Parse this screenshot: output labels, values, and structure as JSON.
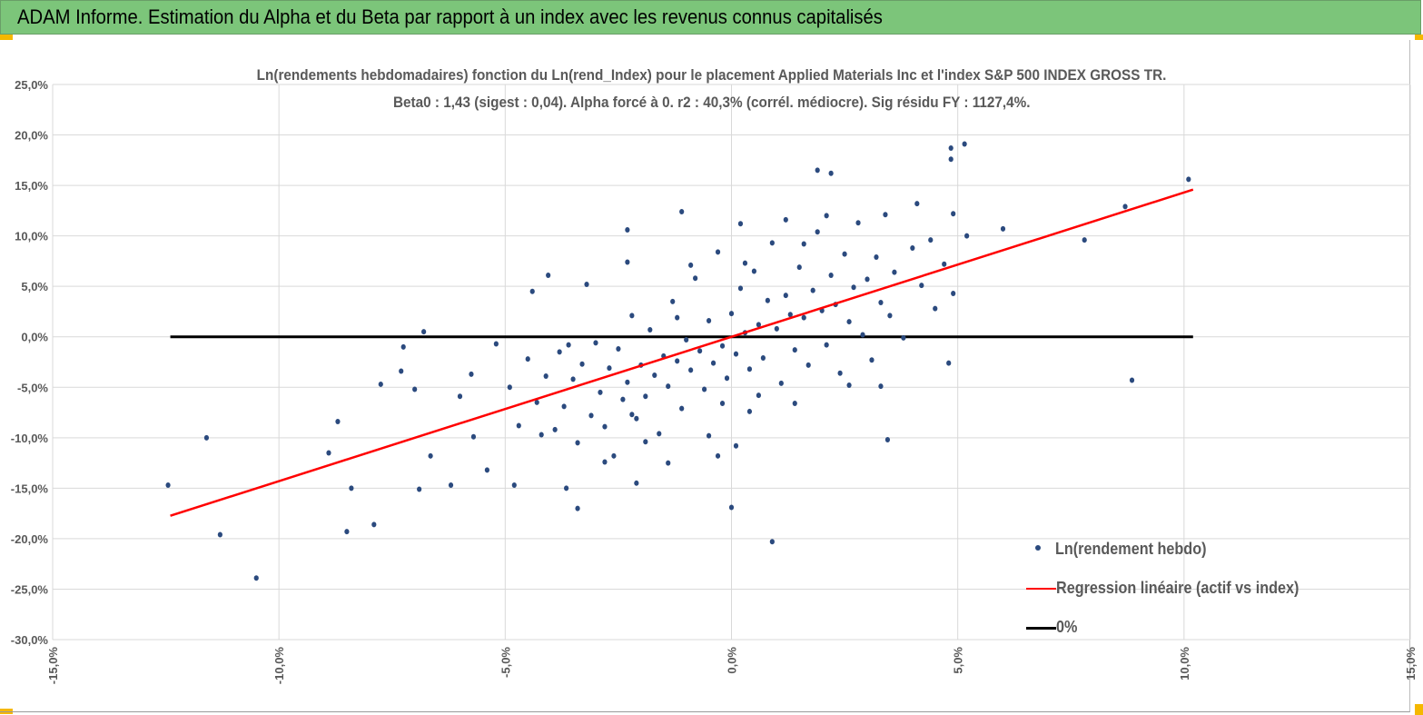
{
  "header": {
    "title": "ADAM Informe. Estimation du Alpha et du Beta par rapport à un index avec les revenus connus capitalisés"
  },
  "colors": {
    "title_bar": "#7cc57a",
    "points": "#2b4a7e",
    "regression": "#ff0000",
    "zero_line": "#000000",
    "grid": "#d9d9d9"
  },
  "chart_data": {
    "type": "scatter",
    "title": "Ln(rendements hebdomadaires) fonction du Ln(rend_Index) pour le placement Applied Materials Inc et l'index S&P 500 INDEX GROSS TR.",
    "subtitle": "Beta0 : 1,43 (sigest : 0,04). Alpha forcé à 0. r2 : 40,3% (corrél. médiocre). Sig résidu FY : 1127,4%.",
    "xlabel": "",
    "ylabel": "",
    "xlim": [
      -15,
      15
    ],
    "ylim": [
      -30,
      25
    ],
    "xticks": [
      -15,
      -10,
      -5,
      0,
      5,
      10,
      15
    ],
    "yticks": [
      25,
      20,
      15,
      10,
      5,
      0,
      -5,
      -10,
      -15,
      -20,
      -25,
      -30
    ],
    "xtick_labels": [
      "-15,0%",
      "-10,0%",
      "-5,0%",
      "0,0%",
      "5,0%",
      "10,0%",
      "15,0%"
    ],
    "ytick_labels": [
      "25,0%",
      "20,0%",
      "15,0%",
      "10,0%",
      "5,0%",
      "0,0%",
      "-5,0%",
      "-10,0%",
      "-15,0%",
      "-20,0%",
      "-25,0%",
      "-30,0%"
    ],
    "grid": true,
    "legend_position": "bottom-right",
    "series": [
      {
        "name": "Ln(rendement hebdo)",
        "kind": "points",
        "points": [
          [
            -12.45,
            -14.7
          ],
          [
            -11.6,
            -10
          ],
          [
            -11.3,
            -19.6
          ],
          [
            -10.5,
            -23.9
          ],
          [
            -8.9,
            -11.5
          ],
          [
            -8.7,
            -8.4
          ],
          [
            -8.5,
            -19.3
          ],
          [
            -8.4,
            -15
          ],
          [
            -7.9,
            -18.6
          ],
          [
            -7.75,
            -4.7
          ],
          [
            -7.3,
            -3.4
          ],
          [
            -7.25,
            -1
          ],
          [
            -7,
            -5.2
          ],
          [
            -6.9,
            -15.1
          ],
          [
            -6.8,
            0.5
          ],
          [
            -6.65,
            -11.8
          ],
          [
            -6.2,
            -14.7
          ],
          [
            -6,
            -5.9
          ],
          [
            -5.75,
            -3.7
          ],
          [
            -5.7,
            -9.9
          ],
          [
            -5.4,
            -13.2
          ],
          [
            -5.2,
            -0.7
          ],
          [
            -4.05,
            6.1
          ],
          [
            -4.4,
            4.5
          ],
          [
            -4.8,
            -14.7
          ],
          [
            -3.65,
            -15
          ],
          [
            -3.4,
            -17
          ],
          [
            -3.2,
            5.2
          ],
          [
            -2.3,
            10.6
          ],
          [
            -2.1,
            -14.5
          ],
          [
            -2.3,
            7.4
          ],
          [
            -1.1,
            12.4
          ],
          [
            0,
            -16.9
          ],
          [
            0.9,
            -20.3
          ],
          [
            0.1,
            -10.8
          ],
          [
            -0.3,
            -11.8
          ],
          [
            1.9,
            16.5
          ],
          [
            2.2,
            16.2
          ],
          [
            3.45,
            -10.2
          ],
          [
            4.85,
            18.7
          ],
          [
            4.85,
            17.6
          ],
          [
            5.15,
            19.1
          ],
          [
            4.8,
            -2.6
          ],
          [
            6,
            10.7
          ],
          [
            7.8,
            9.6
          ],
          [
            8.7,
            12.9
          ],
          [
            8.85,
            -4.3
          ],
          [
            10.1,
            15.6
          ],
          [
            5.2,
            10
          ],
          [
            4.9,
            4.3
          ],
          [
            -4.9,
            -5
          ],
          [
            -4.7,
            -8.8
          ],
          [
            -4.5,
            -2.2
          ],
          [
            -4.3,
            -6.5
          ],
          [
            -4.1,
            -3.9
          ],
          [
            -3.9,
            -9.2
          ],
          [
            -3.8,
            -1.5
          ],
          [
            -3.7,
            -6.9
          ],
          [
            -3.5,
            -4.2
          ],
          [
            -3.4,
            -10.5
          ],
          [
            -3.3,
            -2.7
          ],
          [
            -3.1,
            -7.8
          ],
          [
            -3,
            -0.6
          ],
          [
            -2.9,
            -5.5
          ],
          [
            -2.8,
            -8.9
          ],
          [
            -2.7,
            -3.1
          ],
          [
            -2.6,
            -11.8
          ],
          [
            -2.5,
            -1.2
          ],
          [
            -2.4,
            -6.2
          ],
          [
            -2.3,
            -4.5
          ],
          [
            -2.2,
            2.1
          ],
          [
            -2.1,
            -8.1
          ],
          [
            -2,
            -2.8
          ],
          [
            -1.9,
            -5.9
          ],
          [
            -1.8,
            0.7
          ],
          [
            -1.7,
            -3.8
          ],
          [
            -1.6,
            -9.6
          ],
          [
            -1.5,
            -1.9
          ],
          [
            -1.4,
            -4.9
          ],
          [
            -1.3,
            3.5
          ],
          [
            -1.2,
            -2.4
          ],
          [
            -1.1,
            -7.1
          ],
          [
            -1,
            -0.3
          ],
          [
            -0.9,
            -3.3
          ],
          [
            -0.8,
            5.8
          ],
          [
            -0.7,
            -1.4
          ],
          [
            -0.6,
            -5.2
          ],
          [
            -0.5,
            1.6
          ],
          [
            -0.4,
            -2.6
          ],
          [
            -0.3,
            8.4
          ],
          [
            -0.2,
            -0.9
          ],
          [
            -0.1,
            -4.1
          ],
          [
            0,
            2.3
          ],
          [
            0.1,
            -1.7
          ],
          [
            0.2,
            4.8
          ],
          [
            0.3,
            0.4
          ],
          [
            0.4,
            -3.2
          ],
          [
            0.5,
            6.5
          ],
          [
            0.6,
            1.2
          ],
          [
            0.7,
            -2.1
          ],
          [
            0.8,
            3.6
          ],
          [
            0.9,
            9.3
          ],
          [
            1,
            0.8
          ],
          [
            1.1,
            -4.6
          ],
          [
            1.2,
            4.1
          ],
          [
            1.3,
            2.2
          ],
          [
            1.4,
            -1.3
          ],
          [
            1.5,
            6.9
          ],
          [
            1.6,
            1.9
          ],
          [
            1.7,
            -2.8
          ],
          [
            1.8,
            4.6
          ],
          [
            1.9,
            10.4
          ],
          [
            2,
            2.6
          ],
          [
            2.1,
            -0.8
          ],
          [
            2.2,
            6.1
          ],
          [
            2.3,
            3.2
          ],
          [
            2.4,
            -3.6
          ],
          [
            2.5,
            8.2
          ],
          [
            2.6,
            1.5
          ],
          [
            2.7,
            4.9
          ],
          [
            2.8,
            11.3
          ],
          [
            2.9,
            0.2
          ],
          [
            3,
            5.7
          ],
          [
            3.1,
            -2.3
          ],
          [
            3.2,
            7.9
          ],
          [
            3.3,
            3.4
          ],
          [
            3.4,
            12.1
          ],
          [
            3.5,
            2.1
          ],
          [
            3.6,
            6.4
          ],
          [
            3.8,
            -0.1
          ],
          [
            4,
            8.8
          ],
          [
            4.1,
            13.2
          ],
          [
            4.2,
            5.1
          ],
          [
            4.4,
            9.6
          ],
          [
            4.5,
            2.8
          ],
          [
            4.7,
            7.2
          ],
          [
            4.9,
            12.2
          ],
          [
            -1.4,
            -12.5
          ],
          [
            -0.5,
            -9.8
          ],
          [
            0.4,
            -7.4
          ],
          [
            1.4,
            -6.6
          ],
          [
            2.6,
            -4.8
          ],
          [
            -2.8,
            -12.4
          ],
          [
            0.2,
            11.2
          ],
          [
            1.2,
            11.6
          ],
          [
            0.6,
            -5.8
          ],
          [
            -0.9,
            7.1
          ],
          [
            -1.9,
            -10.4
          ],
          [
            3.3,
            -4.9
          ],
          [
            1.6,
            9.2
          ],
          [
            0.3,
            7.3
          ],
          [
            -0.2,
            -6.6
          ],
          [
            -1.2,
            1.9
          ],
          [
            2.1,
            12
          ],
          [
            -3.6,
            -0.8
          ],
          [
            -4.2,
            -9.7
          ],
          [
            -2.2,
            -7.7
          ]
        ]
      },
      {
        "name": "Regression linéaire (actif vs index)",
        "kind": "line",
        "slope": 1.43,
        "intercept": 0,
        "x_range": [
          -12.4,
          10.2
        ]
      },
      {
        "name": "0%",
        "kind": "line",
        "slope": 0,
        "intercept": 0,
        "x_range": [
          -12.4,
          10.2
        ]
      }
    ]
  }
}
